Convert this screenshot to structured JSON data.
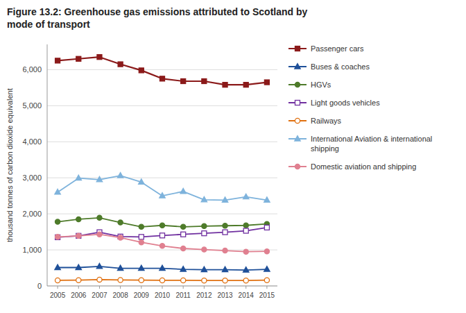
{
  "chart_data": {
    "type": "line",
    "title": "Figure 13.2: Greenhouse gas emissions attributed to Scotland by\nmode of transport",
    "y_label": "thousand tonnes of carbon dioxide equivalent",
    "x": [
      2005,
      2006,
      2007,
      2008,
      2009,
      2010,
      2011,
      2012,
      2013,
      2014,
      2015
    ],
    "xlim": [
      2004.5,
      2015.5
    ],
    "xticks": [
      2005,
      2006,
      2007,
      2008,
      2009,
      2010,
      2011,
      2012,
      2013,
      2014,
      2015
    ],
    "ylim": [
      0,
      6700
    ],
    "yticks": [
      0,
      {
        "value": 1000,
        "label": "1,000"
      },
      {
        "value": 2000,
        "label": "2,000"
      },
      {
        "value": 3000,
        "label": "3,000"
      },
      {
        "value": 4000,
        "label": "4,000"
      },
      {
        "value": 5000,
        "label": "5,000"
      },
      {
        "value": 6000,
        "label": "6,000"
      }
    ],
    "grid": true,
    "legend": "right",
    "series": [
      {
        "name": "Passenger cars",
        "color": "#8B1A1A",
        "marker": "square",
        "values": [
          6250,
          6300,
          6350,
          6150,
          5980,
          5750,
          5680,
          5680,
          5580,
          5580,
          5650
        ]
      },
      {
        "name": "Buses & coaches",
        "color": "#1F5099",
        "marker": "triangle",
        "values": [
          510,
          510,
          540,
          490,
          490,
          490,
          460,
          450,
          450,
          440,
          460
        ]
      },
      {
        "name": "HGVs",
        "color": "#4E7B2A",
        "marker": "circle",
        "values": [
          1780,
          1850,
          1890,
          1760,
          1640,
          1680,
          1640,
          1660,
          1670,
          1680,
          1720
        ]
      },
      {
        "name": "Light goods vehicles",
        "color": "#7030A0",
        "marker": "square-open",
        "values": [
          1350,
          1390,
          1490,
          1370,
          1360,
          1400,
          1430,
          1460,
          1490,
          1530,
          1620
        ]
      },
      {
        "name": "Railways",
        "color": "#E07010",
        "marker": "circle-open",
        "values": [
          155,
          160,
          175,
          165,
          160,
          155,
          155,
          150,
          150,
          150,
          160
        ]
      },
      {
        "name": "International Aviation & international shipping",
        "color": "#7EB3DC",
        "marker": "triangle",
        "values": [
          2600,
          2990,
          2950,
          3060,
          2880,
          2500,
          2620,
          2390,
          2380,
          2470,
          2380
        ]
      },
      {
        "name": "Domestic aviation and shipping",
        "color": "#E08090",
        "marker": "circle",
        "values": [
          1360,
          1390,
          1430,
          1340,
          1210,
          1110,
          1040,
          1010,
          980,
          950,
          960
        ]
      }
    ]
  }
}
